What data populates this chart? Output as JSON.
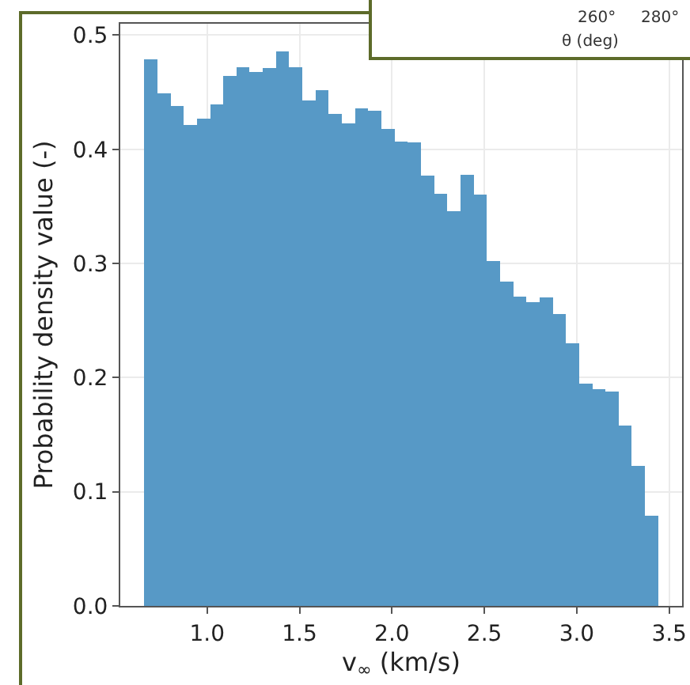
{
  "chart_data": [
    {
      "type": "histogram",
      "xlabel": "v$_{∞}$ (km/s)",
      "ylabel": "Probability density value (-)",
      "color": "#5799c6",
      "bins": [
        0.66,
        0.731,
        0.803,
        0.874,
        0.945,
        1.017,
        1.088,
        1.159,
        1.23,
        1.302,
        1.373,
        1.444,
        1.516,
        1.587,
        1.658,
        1.73,
        1.801,
        1.872,
        1.943,
        2.015,
        2.086,
        2.157,
        2.229,
        2.3,
        2.371,
        2.443,
        2.514,
        2.585,
        2.656,
        2.728,
        2.799,
        2.87,
        2.942,
        3.013,
        3.084,
        3.156,
        3.227,
        3.298,
        3.369,
        3.441
      ],
      "values": [
        0.479,
        0.449,
        0.438,
        0.421,
        0.427,
        0.439,
        0.464,
        0.472,
        0.468,
        0.471,
        0.486,
        0.472,
        0.443,
        0.452,
        0.431,
        0.423,
        0.436,
        0.434,
        0.418,
        0.407,
        0.406,
        0.377,
        0.361,
        0.346,
        0.378,
        0.36,
        0.302,
        0.284,
        0.271,
        0.266,
        0.27,
        0.256,
        0.23,
        0.195,
        0.19,
        0.188,
        0.158,
        0.123,
        0.079
      ],
      "xlim": [
        0.53,
        3.57
      ],
      "xticks": [
        {
          "value": 1,
          "label": "1.0"
        },
        1.5,
        {
          "value": 2,
          "label": "2.0"
        },
        2.5,
        {
          "value": 3,
          "label": "3.0"
        },
        3.5
      ],
      "ylim": [
        0,
        0.51
      ],
      "yticks": [
        {
          "value": 0,
          "label": "0.0"
        },
        0.1,
        0.2,
        0.3,
        0.4,
        0.5
      ],
      "grid": true,
      "legend": false
    },
    {
      "type": "other",
      "xlabel": "θ (deg)",
      "annotations": [
        "260°",
        "280°"
      ]
    }
  ]
}
